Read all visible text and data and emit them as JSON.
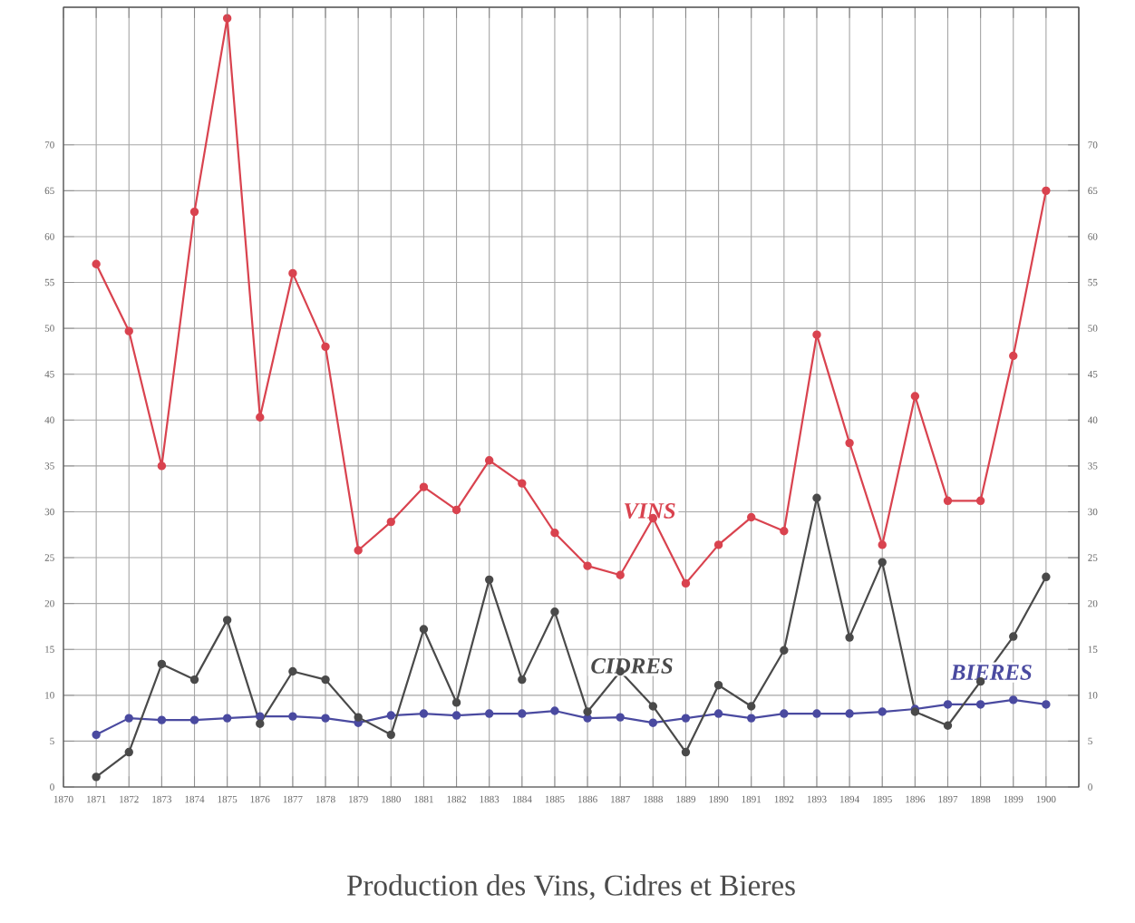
{
  "chart_data": {
    "type": "line",
    "title": "Production des Vins, Cidres et Bieres",
    "x": [
      1871,
      1872,
      1873,
      1874,
      1875,
      1876,
      1877,
      1878,
      1879,
      1880,
      1881,
      1882,
      1883,
      1884,
      1885,
      1886,
      1887,
      1888,
      1889,
      1890,
      1891,
      1892,
      1893,
      1894,
      1895,
      1896,
      1897,
      1898,
      1899,
      1900
    ],
    "series": [
      {
        "name": "VINS",
        "color": "#d9434f",
        "values": [
          57,
          49.7,
          35,
          62.7,
          83.8,
          40.3,
          56,
          48,
          25.8,
          28.9,
          32.7,
          30.2,
          35.6,
          33.1,
          27.7,
          24.1,
          23.1,
          29.3,
          22.2,
          26.4,
          29.4,
          27.9,
          49.3,
          37.5,
          26.4,
          42.6,
          31.2,
          31.2,
          47,
          65
        ]
      },
      {
        "name": "CIDRES",
        "color": "#4a4a4a",
        "values": [
          1.1,
          3.8,
          13.4,
          11.7,
          18.2,
          6.9,
          12.6,
          11.7,
          7.6,
          5.7,
          17.2,
          9.2,
          22.6,
          11.7,
          19.1,
          8.2,
          12.6,
          8.8,
          3.8,
          11.1,
          8.8,
          14.9,
          31.5,
          16.3,
          24.5,
          8.2,
          6.7,
          11.5,
          16.4,
          22.9
        ]
      },
      {
        "name": "BIERES",
        "color": "#4a4aa0",
        "values": [
          5.7,
          7.5,
          7.3,
          7.3,
          7.5,
          7.7,
          7.7,
          7.5,
          7,
          7.8,
          8,
          7.8,
          8,
          8,
          8.3,
          7.5,
          7.6,
          7,
          7.5,
          8,
          7.5,
          8,
          8,
          8,
          8.2,
          8.5,
          9,
          9,
          9.5,
          9
        ]
      }
    ],
    "xlim": [
      1870,
      1901
    ],
    "xticks": [
      1870,
      1871,
      1872,
      1873,
      1874,
      1875,
      1876,
      1877,
      1878,
      1879,
      1880,
      1881,
      1882,
      1883,
      1884,
      1885,
      1886,
      1887,
      1888,
      1889,
      1890,
      1891,
      1892,
      1893,
      1894,
      1895,
      1896,
      1897,
      1898,
      1899,
      1900
    ],
    "ylim": [
      0,
      85
    ],
    "yticks": [
      0,
      5,
      10,
      15,
      20,
      25,
      30,
      35,
      40,
      45,
      50,
      55,
      60,
      65,
      70
    ],
    "y2lim": [
      0,
      85
    ],
    "y2ticks": [
      0,
      5,
      10,
      15,
      20,
      25,
      30,
      35,
      40,
      45,
      50,
      55,
      60,
      65,
      70
    ],
    "grid": true,
    "marker": "circle",
    "line_style": "solid",
    "legend": false
  }
}
